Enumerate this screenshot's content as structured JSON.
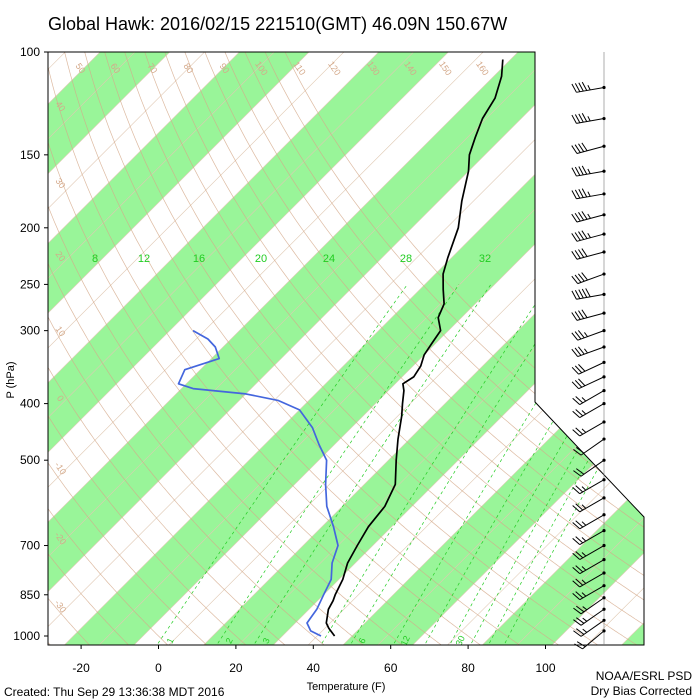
{
  "header": {
    "title": "Global Hawk: 2016/02/15 221510(GMT) 46.09N 150.67W"
  },
  "footer": {
    "created": "Created: Thu Sep 29 13:36:38 MDT 2016",
    "org": "NOAA/ESRL PSD",
    "note": "Dry Bias Corrected"
  },
  "colors": {
    "band": "#99f599",
    "isotherm": "#e0c9b3",
    "dry_adiabat": "#d4a98a",
    "mixing_ratio": "#22cc22",
    "temperature": "#000000",
    "dewpoint": "#4466dd",
    "wind": "#000000"
  },
  "chart_data": {
    "type": "line",
    "subtype": "skew-T log-P",
    "title": "Global Hawk: 2016/02/15 221510(GMT) 46.09N 150.67W",
    "xlabel": "Temperature (F)",
    "ylabel": "P (hPa)",
    "x_ticks": [
      "-20",
      "0",
      "20",
      "40",
      "60",
      "80",
      "100"
    ],
    "y_ticks": [
      "100",
      "150",
      "200",
      "250",
      "300",
      "400",
      "500",
      "700",
      "850",
      "1000"
    ],
    "xlim_at_1000hPa": [
      -27,
      124
    ],
    "ylim": [
      1050,
      100
    ],
    "y_scale": "log",
    "isotherm_labels": [
      "-30",
      "-20",
      "-10",
      "0",
      "10",
      "20",
      "30"
    ],
    "mixing_ratio_labels_top": [
      "8",
      "12",
      "16",
      "20",
      "24",
      "28",
      "32"
    ],
    "mixing_ratio_labels_bottom": [
      "1",
      "2",
      "3",
      "6",
      "12",
      "30"
    ],
    "dry_adiabat_labels": [
      "50",
      "60",
      "70",
      "80",
      "90",
      "100",
      "110",
      "120",
      "130",
      "140",
      "150",
      "160"
    ],
    "dry_adiabat_labels_left": [
      "40",
      "30",
      "20",
      "10",
      "0",
      "-10",
      "-20",
      "-30"
    ],
    "series": [
      {
        "name": "temperature",
        "points": [
          [
            1000,
            45.5
          ],
          [
            970,
            42
          ],
          [
            950,
            40
          ],
          [
            900,
            37
          ],
          [
            870,
            36
          ],
          [
            850,
            35
          ],
          [
            800,
            33
          ],
          [
            750,
            30
          ],
          [
            700,
            28
          ],
          [
            650,
            26
          ],
          [
            600,
            25
          ],
          [
            550,
            22
          ],
          [
            500,
            16
          ],
          [
            460,
            11
          ],
          [
            420,
            6
          ],
          [
            400,
            3
          ],
          [
            380,
            0
          ],
          [
            370,
            -2
          ],
          [
            360,
            -1
          ],
          [
            345,
            -2
          ],
          [
            330,
            -4
          ],
          [
            315,
            -5
          ],
          [
            300,
            -6
          ],
          [
            285,
            -10
          ],
          [
            270,
            -12
          ],
          [
            255,
            -16
          ],
          [
            240,
            -20
          ],
          [
            225,
            -23
          ],
          [
            200,
            -28
          ],
          [
            180,
            -34
          ],
          [
            160,
            -40
          ],
          [
            150,
            -44
          ],
          [
            140,
            -47
          ],
          [
            130,
            -50
          ],
          [
            120,
            -52
          ],
          [
            110,
            -56
          ],
          [
            103,
            -60
          ]
        ]
      },
      {
        "name": "dewpoint",
        "points": [
          [
            1000,
            42
          ],
          [
            980,
            38
          ],
          [
            950,
            35
          ],
          [
            900,
            34
          ],
          [
            850,
            32
          ],
          [
            800,
            30
          ],
          [
            750,
            26
          ],
          [
            700,
            23
          ],
          [
            650,
            17
          ],
          [
            600,
            10
          ],
          [
            550,
            4
          ],
          [
            500,
            -2
          ],
          [
            470,
            -8
          ],
          [
            440,
            -14
          ],
          [
            410,
            -22
          ],
          [
            395,
            -30
          ],
          [
            385,
            -40
          ],
          [
            377,
            -55
          ],
          [
            370,
            -60
          ],
          [
            350,
            -62
          ],
          [
            335,
            -56
          ],
          [
            320,
            -60
          ],
          [
            310,
            -64
          ],
          [
            300,
            -70
          ]
        ]
      }
    ],
    "wind_barbs": [
      {
        "p": 115,
        "speed_kt": 45,
        "dir": 260
      },
      {
        "p": 130,
        "speed_kt": 45,
        "dir": 260
      },
      {
        "p": 145,
        "speed_kt": 40,
        "dir": 255
      },
      {
        "p": 160,
        "speed_kt": 45,
        "dir": 260
      },
      {
        "p": 175,
        "speed_kt": 45,
        "dir": 260
      },
      {
        "p": 190,
        "speed_kt": 45,
        "dir": 255
      },
      {
        "p": 205,
        "speed_kt": 45,
        "dir": 255
      },
      {
        "p": 220,
        "speed_kt": 40,
        "dir": 255
      },
      {
        "p": 240,
        "speed_kt": 40,
        "dir": 250
      },
      {
        "p": 260,
        "speed_kt": 50,
        "dir": 260
      },
      {
        "p": 280,
        "speed_kt": 40,
        "dir": 255
      },
      {
        "p": 300,
        "speed_kt": 35,
        "dir": 250
      },
      {
        "p": 320,
        "speed_kt": 35,
        "dir": 250
      },
      {
        "p": 340,
        "speed_kt": 30,
        "dir": 245
      },
      {
        "p": 360,
        "speed_kt": 30,
        "dir": 245
      },
      {
        "p": 380,
        "speed_kt": 25,
        "dir": 240
      },
      {
        "p": 400,
        "speed_kt": 25,
        "dir": 240
      },
      {
        "p": 430,
        "speed_kt": 25,
        "dir": 240
      },
      {
        "p": 460,
        "speed_kt": 20,
        "dir": 235
      },
      {
        "p": 500,
        "speed_kt": 20,
        "dir": 235
      },
      {
        "p": 540,
        "speed_kt": 25,
        "dir": 240
      },
      {
        "p": 580,
        "speed_kt": 25,
        "dir": 240
      },
      {
        "p": 620,
        "speed_kt": 25,
        "dir": 240
      },
      {
        "p": 660,
        "speed_kt": 25,
        "dir": 240
      },
      {
        "p": 700,
        "speed_kt": 25,
        "dir": 240
      },
      {
        "p": 740,
        "speed_kt": 25,
        "dir": 240
      },
      {
        "p": 780,
        "speed_kt": 25,
        "dir": 240
      },
      {
        "p": 820,
        "speed_kt": 25,
        "dir": 240
      },
      {
        "p": 860,
        "speed_kt": 25,
        "dir": 235
      },
      {
        "p": 900,
        "speed_kt": 25,
        "dir": 235
      },
      {
        "p": 940,
        "speed_kt": 25,
        "dir": 235
      },
      {
        "p": 980,
        "speed_kt": 20,
        "dir": 230
      }
    ]
  }
}
